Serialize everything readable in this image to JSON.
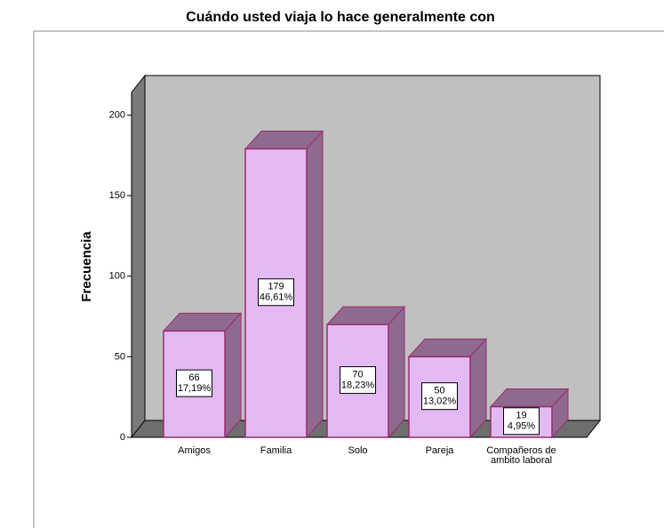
{
  "chart_data": {
    "type": "bar3d",
    "title": "Cuándo usted viaja lo hace generalmente con",
    "ylabel": "Frecuencia",
    "categories": [
      "Amigos",
      "Familia",
      "Solo",
      "Pareja",
      "Compañeros de ambito laboral"
    ],
    "values": [
      66,
      179,
      70,
      50,
      19
    ],
    "percentages": [
      17.19,
      46.61,
      18.23,
      13.02,
      4.95
    ],
    "percentage_labels": [
      "17,19%",
      "46,61%",
      "18,23%",
      "13,02%",
      "4,95%"
    ],
    "color": "#e2b9f2",
    "ylim": [
      0,
      214
    ],
    "yticks": [
      0,
      50,
      100,
      150,
      200
    ]
  }
}
